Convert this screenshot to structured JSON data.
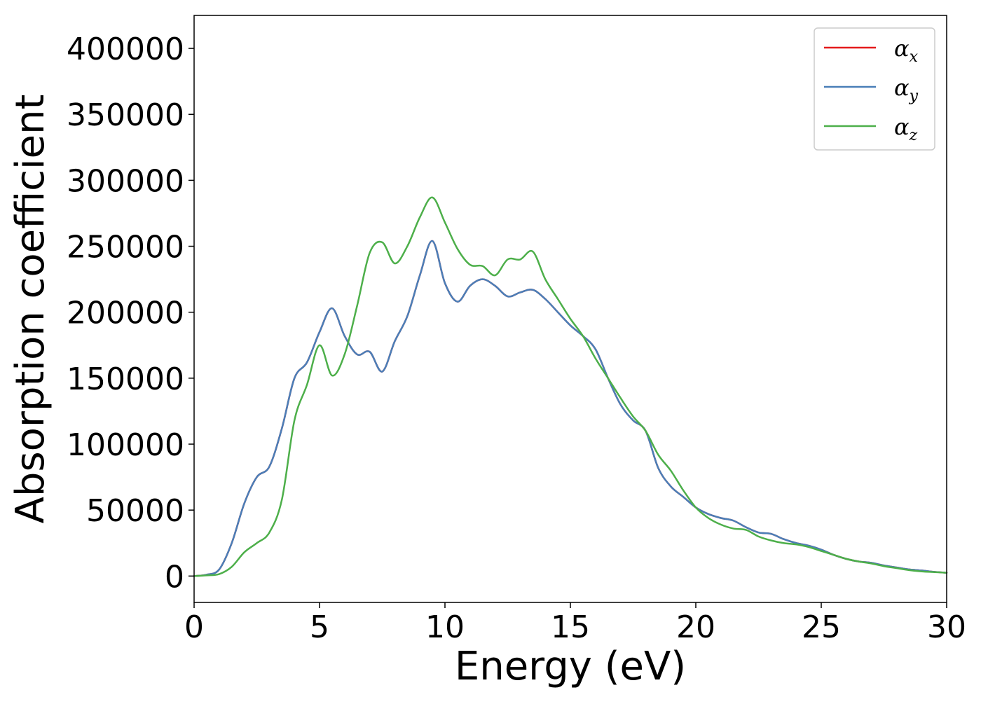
{
  "chart_data": {
    "type": "line",
    "xlabel": "Energy (eV)",
    "ylabel": "Absorption coefficient",
    "xlim": [
      0,
      30
    ],
    "ylim": [
      -20000,
      425000
    ],
    "xticks": [
      0,
      5,
      10,
      15,
      20,
      25,
      30
    ],
    "yticks": [
      0,
      50000,
      100000,
      150000,
      200000,
      250000,
      300000,
      350000,
      400000
    ],
    "grid": false,
    "legend_position": "top-right",
    "x": [
      0,
      0.5,
      1,
      1.5,
      2,
      2.5,
      3,
      3.5,
      4,
      4.5,
      5,
      5.5,
      6,
      6.5,
      7,
      7.5,
      8,
      8.5,
      9,
      9.5,
      10,
      10.5,
      11,
      11.5,
      12,
      12.5,
      13,
      13.5,
      14,
      14.5,
      15,
      15.5,
      16,
      16.5,
      17,
      17.5,
      18,
      18.5,
      19,
      19.5,
      20,
      20.5,
      21,
      21.5,
      22,
      22.5,
      23,
      23.5,
      24,
      24.5,
      25,
      25.5,
      26,
      26.5,
      27,
      27.5,
      28,
      28.5,
      29,
      29.5,
      30
    ],
    "series": [
      {
        "name": "α",
        "subscript": "x",
        "color": "#e41a1c",
        "values": [
          0,
          1000,
          5000,
          25000,
          55000,
          75000,
          83000,
          112000,
          150000,
          162000,
          185000,
          203000,
          182000,
          168000,
          170000,
          155000,
          178000,
          197000,
          228000,
          254000,
          222000,
          208000,
          220000,
          225000,
          220000,
          212000,
          215000,
          217000,
          210000,
          200000,
          190000,
          182000,
          172000,
          150000,
          130000,
          118000,
          110000,
          82000,
          68000,
          60000,
          52000,
          47000,
          44000,
          42000,
          37000,
          33000,
          32000,
          28000,
          25000,
          23000,
          20000,
          16000,
          13000,
          11000,
          10000,
          8000,
          6500,
          5000,
          4200,
          3200,
          2500
        ]
      },
      {
        "name": "α",
        "subscript": "y",
        "color": "#4a7fb8",
        "values": [
          0,
          1000,
          5000,
          25000,
          55000,
          75000,
          83000,
          112000,
          150000,
          162000,
          185000,
          203000,
          182000,
          168000,
          170000,
          155000,
          178000,
          197000,
          228000,
          254000,
          222000,
          208000,
          220000,
          225000,
          220000,
          212000,
          215000,
          217000,
          210000,
          200000,
          190000,
          182000,
          172000,
          150000,
          130000,
          118000,
          110000,
          82000,
          68000,
          60000,
          52000,
          47000,
          44000,
          42000,
          37000,
          33000,
          32000,
          28000,
          25000,
          23000,
          20000,
          16000,
          13000,
          11000,
          10000,
          8000,
          6500,
          5000,
          4200,
          3200,
          2500
        ]
      },
      {
        "name": "α",
        "subscript": "z",
        "color": "#4daf4a",
        "values": [
          0,
          500,
          1500,
          7000,
          18000,
          25000,
          33000,
          58000,
          118000,
          145000,
          175000,
          152000,
          168000,
          205000,
          245000,
          253000,
          237000,
          250000,
          272000,
          287000,
          268000,
          248000,
          236000,
          235000,
          228000,
          240000,
          240000,
          246000,
          225000,
          210000,
          195000,
          182000,
          165000,
          150000,
          135000,
          121000,
          110000,
          92000,
          80000,
          65000,
          52000,
          44000,
          39000,
          36000,
          35000,
          30000,
          27000,
          25000,
          24000,
          22000,
          19000,
          16000,
          13000,
          11000,
          9500,
          7500,
          6000,
          4500,
          3500,
          3000,
          2500
        ]
      }
    ]
  }
}
